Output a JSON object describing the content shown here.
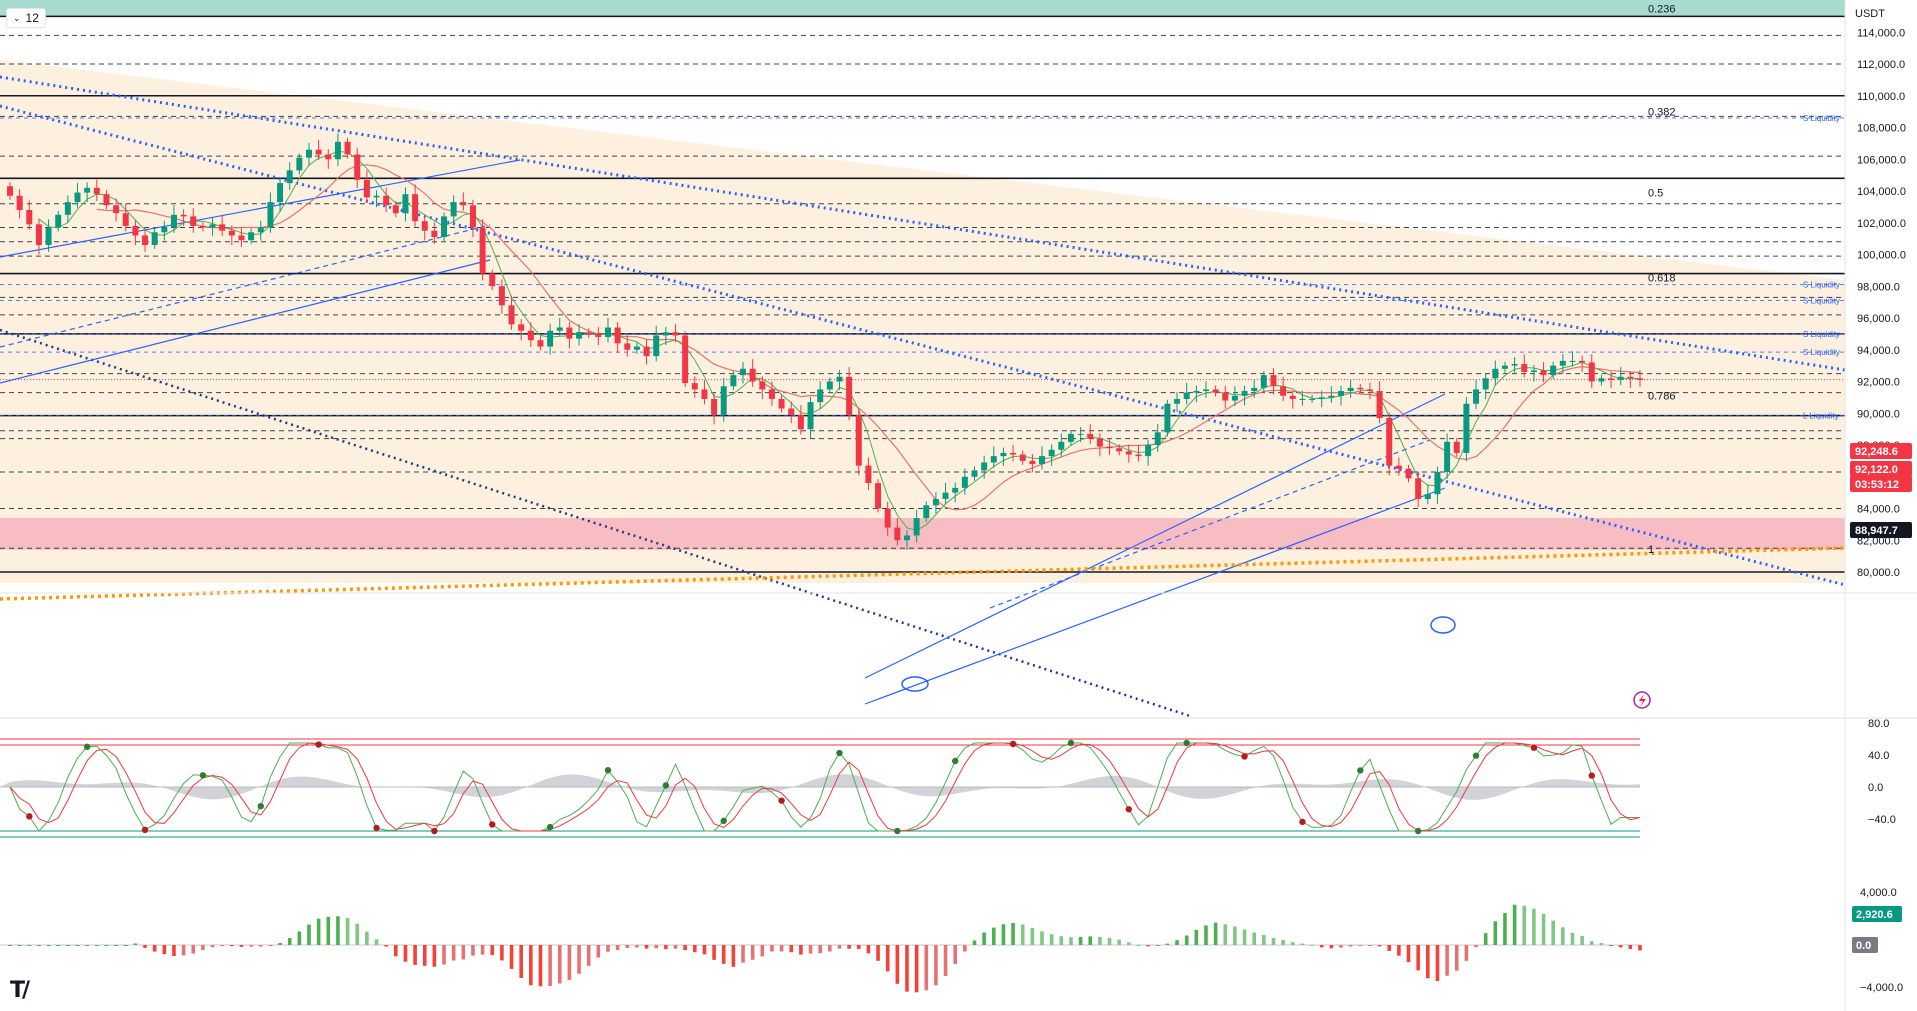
{
  "toolbar": {
    "interval": "12"
  },
  "axis": {
    "currency": "USDT"
  },
  "colors": {
    "up": "#089981",
    "down": "#f23645",
    "trendline": "#2962ff",
    "orange_line": "#ff9800",
    "zone_beige": "#fdebd3",
    "zone_teal": "#a8dbcf",
    "zone_red": "#f8b9c1"
  },
  "chart_data": {
    "type": "candlestick",
    "symbol_quote": "USDT",
    "price_axis": {
      "ticks": [
        "114,000.0",
        "112,000.0",
        "110,000.0",
        "108,000.0",
        "106,000.0",
        "104,000.0",
        "102,000.0",
        "100,000.0",
        "98,000.0",
        "96,000.0",
        "94,000.0",
        "92,000.0",
        "90,000.0",
        "88,000.0",
        "86,000.0",
        "84,000.0",
        "82,000.0",
        "80,000.0"
      ],
      "range": [
        79000,
        116500
      ]
    },
    "price_tags": [
      {
        "label": "92,248.6",
        "value": 92248.6,
        "color": "#f23645"
      },
      {
        "label": "92,122.0",
        "value": 92122.0,
        "color": "#f23645"
      },
      {
        "label": "03:53:12",
        "value": 91750,
        "color": "#f23645"
      },
      {
        "label": "88,947.7",
        "value": 88947.7,
        "color": "#131722"
      }
    ],
    "fib_levels": [
      {
        "label": "0.236",
        "value": 115000
      },
      {
        "label": "0.382",
        "value": 108500
      },
      {
        "label": "0.5",
        "value": 103400
      },
      {
        "label": "0.618",
        "value": 98050
      },
      {
        "label": "0.786",
        "value": 90600
      },
      {
        "label": "1",
        "value": 80950
      }
    ],
    "liquidity_labels": [
      {
        "label": "S Liquidity",
        "value": 108600
      },
      {
        "label": "S Liquidity",
        "value": 98100
      },
      {
        "label": "S Liquidity",
        "value": 97100
      },
      {
        "label": "S Liquidity",
        "value": 95000
      },
      {
        "label": "S Liquidity",
        "value": 93850
      },
      {
        "label": "L Liquidity",
        "value": 89850
      }
    ],
    "key_levels_solid": [
      115000,
      110000,
      104800,
      98800,
      95000,
      89850,
      80000
    ],
    "key_levels_dashed": [
      113800,
      112000,
      108700,
      106200,
      103200,
      101700,
      100800,
      99900,
      97300,
      96200,
      92500,
      91300,
      88900,
      88400,
      86300,
      84000,
      81500
    ],
    "zones": [
      {
        "name": "resistance",
        "from": 115000,
        "to": 116500,
        "color": "#a8dbcf"
      },
      {
        "name": "demand",
        "from": 81400,
        "to": 83400,
        "color": "#f8b9c1"
      }
    ],
    "close_series": [
      103700,
      102800,
      101900,
      100600,
      101700,
      102500,
      103300,
      103900,
      104200,
      103800,
      103100,
      102600,
      101800,
      101200,
      100600,
      101400,
      101700,
      102500,
      102400,
      101800,
      101700,
      101900,
      101500,
      101200,
      100900,
      101400,
      101700,
      103300,
      104500,
      105300,
      106100,
      106600,
      106300,
      106000,
      107100,
      106300,
      104700,
      103600,
      103700,
      103100,
      102600,
      103800,
      102100,
      101500,
      101100,
      102400,
      103300,
      103100,
      101700,
      98800,
      98000,
      96800,
      95600,
      95200,
      94600,
      94200,
      95200,
      95400,
      94700,
      95100,
      95000,
      94800,
      95400,
      94400,
      94000,
      94200,
      93600,
      94900,
      95100,
      94900,
      91900,
      91500,
      90900,
      89900,
      91700,
      92400,
      92800,
      92000,
      91500,
      90900,
      90300,
      89900,
      89000,
      90700,
      91500,
      92000,
      92300,
      89900,
      86700,
      85600,
      84000,
      82800,
      82000,
      82300,
      83400,
      84200,
      84600,
      85000,
      85300,
      86000,
      86400,
      86900,
      87300,
      87500,
      87400,
      87000,
      86800,
      87300,
      87700,
      88200,
      88700,
      88700,
      88400,
      87900,
      87800,
      87600,
      87400,
      87300,
      88000,
      88800,
      90600,
      90900,
      91300,
      91400,
      91500,
      91300,
      90800,
      91100,
      91400,
      91600,
      92400,
      91700,
      91100,
      90900,
      90900,
      90900,
      91000,
      91100,
      91400,
      91600,
      91500,
      91400,
      89700,
      86700,
      86500,
      85900,
      84600,
      84900,
      86300,
      88200,
      87500,
      90600,
      91500,
      92200,
      92800,
      93000,
      93100,
      92600,
      92700,
      92400,
      93000,
      93300,
      93300,
      93200,
      92000,
      92200,
      92100,
      92300,
      92200,
      92100
    ],
    "rsi_panel": {
      "ticks": [
        "80.0",
        "40.0",
        "0.0",
        "−40.0"
      ],
      "range": [
        -60,
        85
      ]
    },
    "macd_panel": {
      "ticks": [
        "4,000.0",
        "0.0",
        "−4,000.0"
      ],
      "range": [
        -4500,
        5000
      ],
      "tags": [
        {
          "label": "2,920.6",
          "value": 2920.6,
          "color": "#089981"
        },
        {
          "label": "0.0",
          "value": 0,
          "color": "#787b86"
        }
      ]
    }
  }
}
